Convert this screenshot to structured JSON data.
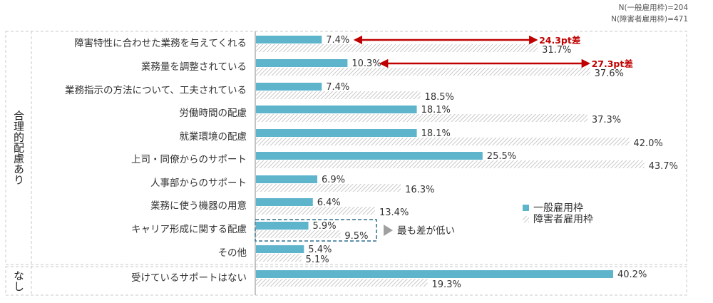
{
  "sample_notes": [
    "N(一般雇用枠)=204",
    "N(障害者雇用枠)=471"
  ],
  "groups": {
    "with": "合理的配慮あり",
    "without": "なし"
  },
  "legend": {
    "general": "一般雇用枠",
    "disabled": "障害者雇用枠"
  },
  "colors": {
    "general": "#5db4cb",
    "disabled_hatch": "#c8c8c8",
    "diff_arrow": "#c00000",
    "highlight_box": "#2e6f8e"
  },
  "annotations": {
    "diff1": "24.3pt差",
    "diff2": "27.3pt差",
    "lowest_gap": "最も差が低い"
  },
  "chart_data": {
    "type": "bar",
    "orientation": "horizontal",
    "categories": [
      "障害特性に合わせた業務を与えてくれる",
      "業務量を調整されている",
      "業務指示の方法について、工夫されている",
      "労働時間の配慮",
      "就業環境の配慮",
      "上司・同僚からのサポート",
      "人事部からのサポート",
      "業務に使う機器の用意",
      "キャリア形成に関する配慮",
      "その他",
      "受けているサポートはない"
    ],
    "series": [
      {
        "name": "一般雇用枠",
        "values": [
          7.4,
          10.3,
          7.4,
          18.1,
          18.1,
          25.5,
          6.9,
          6.4,
          5.9,
          5.4,
          40.2
        ]
      },
      {
        "name": "障害者雇用枠",
        "values": [
          31.7,
          37.6,
          18.5,
          37.3,
          42.0,
          43.7,
          16.3,
          13.4,
          9.5,
          5.1,
          19.3
        ]
      }
    ],
    "value_labels": {
      "general": [
        "7.4%",
        "10.3%",
        "7.4%",
        "18.1%",
        "18.1%",
        "25.5%",
        "6.9%",
        "6.4%",
        "5.9%",
        "5.4%",
        "40.2%"
      ],
      "disabled": [
        "31.7%",
        "37.6%",
        "18.5%",
        "37.3%",
        "42.0%",
        "43.7%",
        "16.3%",
        "13.4%",
        "9.5%",
        "5.1%",
        "19.3%"
      ]
    },
    "xlim": [
      0,
      50
    ],
    "legend_position": "right",
    "grid": false
  }
}
